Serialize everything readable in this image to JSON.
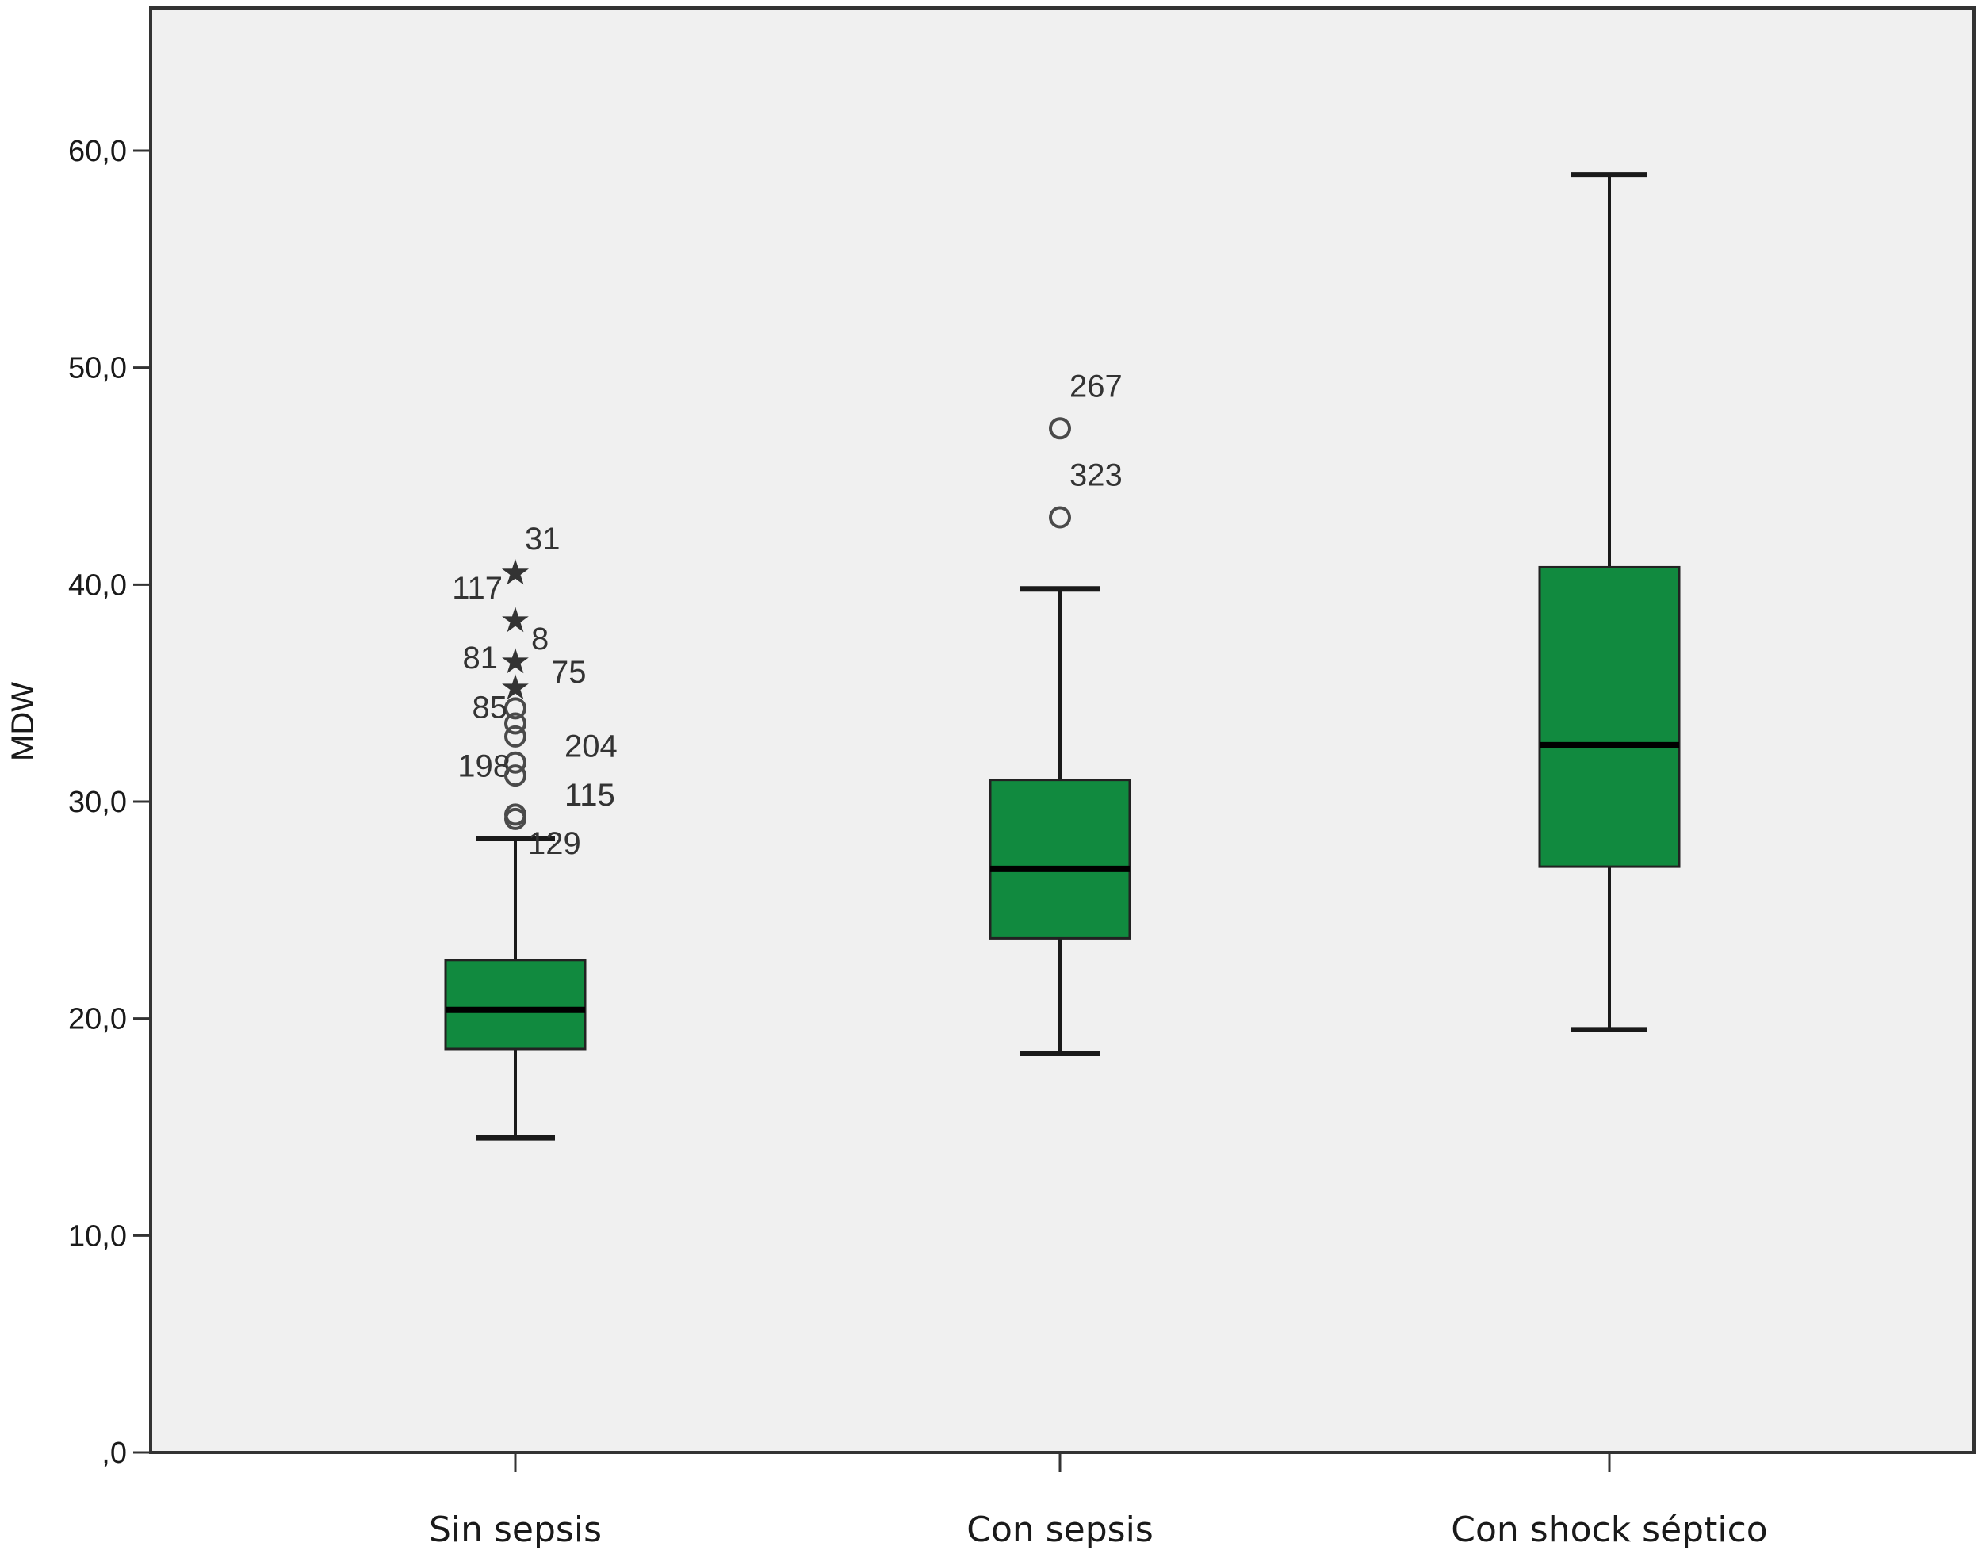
{
  "chart_data": {
    "type": "boxplot",
    "ylabel": "MDW",
    "ylim": [
      0,
      66
    ],
    "yticks": [
      0,
      10,
      20,
      30,
      40,
      50,
      60
    ],
    "ytick_labels": [
      ",0",
      "10,0",
      "20,0",
      "30,0",
      "40,0",
      "50,0",
      "60,0"
    ],
    "grid": false,
    "colors": {
      "box_fill": "#118a3f",
      "plot_bg": "#f0f0f0",
      "stroke": "#1a1a1a",
      "outlier": "#4a4a4a"
    },
    "categories": [
      "Sin sepsis",
      "Con sepsis",
      "Con shock séptico"
    ],
    "boxes": [
      {
        "category": "Sin sepsis",
        "whisker_low": 14.5,
        "q1": 18.6,
        "median": 20.4,
        "q3": 22.7,
        "whisker_high": 28.3,
        "outliers": [
          {
            "y": 40.6,
            "marker": "star",
            "label": "31"
          },
          {
            "y": 40.6,
            "marker": "star",
            "label": "117"
          },
          {
            "y": 38.4,
            "marker": "star",
            "label": "8"
          },
          {
            "y": 36.5,
            "marker": "star",
            "label": "81"
          },
          {
            "y": 35.3,
            "marker": "star",
            "label": "75"
          },
          {
            "y": 34.3,
            "marker": "circle",
            "label": "85"
          },
          {
            "y": 33.6,
            "marker": "circle",
            "label": "204"
          },
          {
            "y": 33.0,
            "marker": "circle",
            "label": ""
          },
          {
            "y": 31.8,
            "marker": "circle",
            "label": "198"
          },
          {
            "y": 31.2,
            "marker": "circle",
            "label": "115"
          },
          {
            "y": 29.4,
            "marker": "circle",
            "label": ""
          },
          {
            "y": 29.2,
            "marker": "circle",
            "label": "129"
          }
        ]
      },
      {
        "category": "Con sepsis",
        "whisker_low": 18.4,
        "q1": 23.7,
        "median": 26.9,
        "q3": 31.0,
        "whisker_high": 39.8,
        "outliers": [
          {
            "y": 47.2,
            "marker": "circle",
            "label": "267"
          },
          {
            "y": 43.1,
            "marker": "circle",
            "label": "323"
          }
        ]
      },
      {
        "category": "Con shock séptico",
        "whisker_low": 19.5,
        "q1": 27.0,
        "median": 32.6,
        "q3": 40.8,
        "whisker_high": 58.9,
        "outliers": []
      }
    ]
  }
}
